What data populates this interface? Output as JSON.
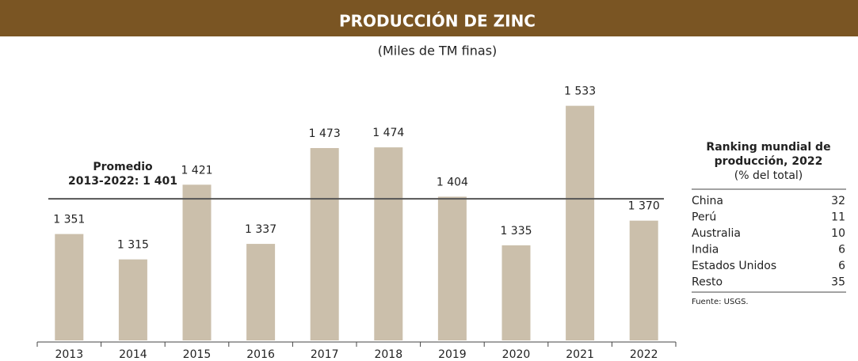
{
  "chart_data": {
    "type": "bar",
    "title": "PRODUCCIÓN DE ZINC",
    "subtitle": "(Miles de TM finas)",
    "categories": [
      "2013",
      "2014",
      "2015",
      "2016",
      "2017",
      "2018",
      "2019",
      "2020",
      "2021",
      "2022"
    ],
    "values": [
      1351,
      1315,
      1421,
      1337,
      1473,
      1474,
      1404,
      1335,
      1533,
      1370
    ],
    "value_labels": [
      "1 351",
      "1 315",
      "1 421",
      "1 337",
      "1 473",
      "1 474",
      "1 404",
      "1 335",
      "1 533",
      "1 370"
    ],
    "color": "#cbbfab",
    "ylim": [
      1200,
      1600
    ],
    "average": {
      "label_lines": [
        "Promedio",
        "2013-2022: 1 401"
      ],
      "value": 1401,
      "color": "#555555"
    }
  },
  "table": {
    "title_lines": [
      "Ranking mundial de",
      "producción, 2022"
    ],
    "subtitle": "(% del total)",
    "rows": [
      [
        "China",
        "32"
      ],
      [
        "Perú",
        "11"
      ],
      [
        "Australia",
        "10"
      ],
      [
        "India",
        "6"
      ],
      [
        "Estados Unidos",
        "6"
      ],
      [
        "Resto",
        "35"
      ]
    ],
    "source": "Fuente: USGS."
  }
}
